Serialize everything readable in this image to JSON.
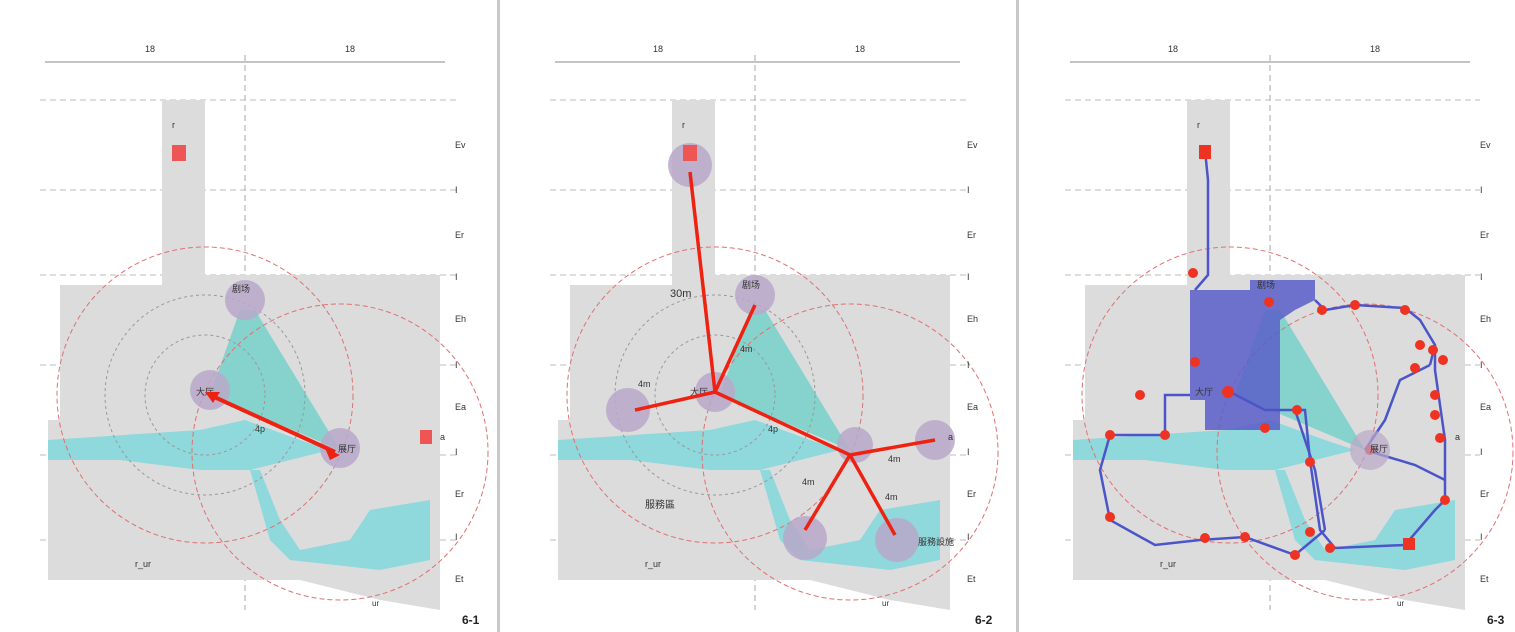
{
  "panels": [
    {
      "caption": "6-1",
      "labels": {
        "top_left": "18",
        "top_right": "18",
        "tower": "r",
        "bottom_left": "r_ur",
        "bottom_right": "ur",
        "node_a": "a"
      },
      "right_scale": [
        "Ev",
        "I",
        "Er",
        "I",
        "Eh",
        "I",
        "Ea",
        "I",
        "Er",
        "I",
        "Et"
      ],
      "nodes": [
        {
          "name": "node-top",
          "label": "剧场"
        },
        {
          "name": "node-center",
          "label": "大厅"
        },
        {
          "name": "node-right",
          "label": "展厅"
        }
      ],
      "arrows": [
        {
          "label": "4p"
        }
      ]
    },
    {
      "caption": "6-2",
      "labels": {
        "top_left": "18",
        "top_right": "18",
        "tower": "r",
        "bottom_left": "r_ur",
        "bottom_right": "ur",
        "node_a": "a",
        "area": "服務區",
        "near": "30m"
      },
      "right_scale": [
        "Ev",
        "I",
        "Er",
        "I",
        "Eh",
        "I",
        "Ea",
        "I",
        "Er",
        "I",
        "Et"
      ],
      "nodes": [
        {
          "name": "node-tower",
          "label": ""
        },
        {
          "name": "node-top",
          "label": "剧场"
        },
        {
          "name": "node-hub",
          "label": "大厅"
        },
        {
          "name": "node-left",
          "label": ""
        },
        {
          "name": "node-mid",
          "label": ""
        },
        {
          "name": "node-right",
          "label": ""
        },
        {
          "name": "node-bottom",
          "label": ""
        },
        {
          "name": "node-bottom-right",
          "label": "服務設施"
        }
      ],
      "arrows": [
        {
          "label": "4m"
        },
        {
          "label": "4m"
        },
        {
          "label": "4p"
        },
        {
          "label": "4m"
        },
        {
          "label": "4m"
        },
        {
          "label": "4m"
        }
      ]
    },
    {
      "caption": "6-3",
      "labels": {
        "top_left": "18",
        "top_right": "18",
        "tower": "r",
        "bottom_left": "r_ur",
        "bottom_right": "ur",
        "node_a": "a"
      },
      "right_scale": [
        "Ev",
        "I",
        "Er",
        "I",
        "Eh",
        "I",
        "Ea",
        "I",
        "Er",
        "I",
        "Et"
      ],
      "nodes": [
        {
          "name": "node-top",
          "label": "剧场"
        },
        {
          "name": "node-hub",
          "label": "大厅"
        },
        {
          "name": "node-right",
          "label": "展厅"
        }
      ]
    }
  ],
  "colors": {
    "site": "#dcdcdc",
    "water": "#8fd8dc",
    "circle": "#e07070",
    "arrow": "#ee2211",
    "node": "#b9a8c9",
    "path": "#4b55c8",
    "hall": "#5a5ec8"
  }
}
